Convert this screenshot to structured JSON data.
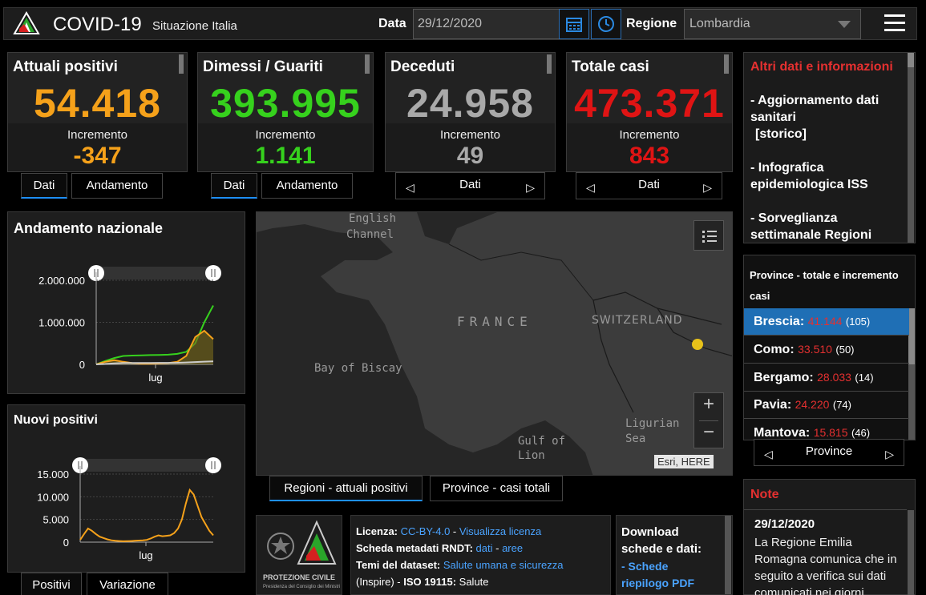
{
  "header": {
    "title": "COVID-19",
    "subtitle": "Situazione Italia",
    "date_label": "Data",
    "date_value": "29/12/2020",
    "region_label": "Regione",
    "region_value": "Lombardia"
  },
  "stats": [
    {
      "label": "Attuali positivi",
      "value": "54.418",
      "inc_label": "Incremento",
      "inc_value": "-347",
      "color": "#f5a11a"
    },
    {
      "label": "Dimessi / Guariti",
      "value": "393.995",
      "inc_label": "Incremento",
      "inc_value": "1.141",
      "color": "#36d11d"
    },
    {
      "label": "Deceduti",
      "value": "24.958",
      "inc_label": "Incremento",
      "inc_value": "49",
      "color": "#a9a9a9"
    },
    {
      "label": "Totale casi",
      "value": "473.371",
      "inc_label": "Incremento",
      "inc_value": "843",
      "color": "#e01414"
    }
  ],
  "stat_tabs": {
    "dati": "Dati",
    "andamento": "Andamento"
  },
  "sidebar": {
    "title": "Altri dati e informazioni",
    "links": [
      "- Aggiornamento dati sanitari",
      "[storico]",
      "- Infografica epidemiologica ISS",
      "- Sorveglianza settimanale Regioni"
    ]
  },
  "province": {
    "title": "Province - totale e incremento casi",
    "rows": [
      {
        "name": "Brescia:",
        "total": "41.144",
        "inc": "(105)"
      },
      {
        "name": "Como:",
        "total": "33.510",
        "inc": "(50)"
      },
      {
        "name": "Bergamo:",
        "total": "28.033",
        "inc": "(14)"
      },
      {
        "name": "Pavia:",
        "total": "24.220",
        "inc": "(74)"
      },
      {
        "name": "Mantova:",
        "total": "15.815",
        "inc": "(46)"
      }
    ],
    "nav_label": "Province"
  },
  "note": {
    "title": "Note",
    "date": "29/12/2020",
    "text": "La Regione Emilia Romagna comunica che in seguito a verifica sui dati comunicati nei giorni"
  },
  "chart_data": [
    {
      "type": "line",
      "title": "Andamento nazionale",
      "xlabel": "lug",
      "yticks": [
        "2.000.000",
        "1.000.000",
        "0"
      ],
      "ylim": [
        0,
        2000000
      ],
      "x": [
        0,
        1,
        2,
        3,
        4,
        5,
        6,
        7,
        8,
        9,
        10,
        11,
        12,
        13
      ],
      "series": [
        {
          "name": "",
          "color": "#36d11d",
          "values": [
            0,
            80000,
            150000,
            200000,
            210000,
            215000,
            220000,
            225000,
            230000,
            250000,
            300000,
            500000,
            1000000,
            1400000
          ]
        },
        {
          "name": "",
          "color": "#f5a11a",
          "values": [
            0,
            60000,
            100000,
            60000,
            30000,
            15000,
            15000,
            20000,
            30000,
            60000,
            200000,
            650000,
            800000,
            600000
          ]
        },
        {
          "name": "",
          "color": "#cccccc",
          "values": [
            0,
            10000,
            25000,
            33000,
            34000,
            35000,
            35000,
            35500,
            36000,
            38000,
            45000,
            55000,
            65000,
            72000
          ]
        }
      ]
    },
    {
      "type": "line",
      "title": "Nuovi positivi",
      "xlabel": "lug",
      "yticks": [
        "15.000",
        "10.000",
        "5.000",
        "0"
      ],
      "ylim": [
        0,
        15000
      ],
      "series": [
        {
          "name": "",
          "color": "#f5a11a",
          "values": [
            500,
            1800,
            3000,
            2500,
            1800,
            1200,
            900,
            600,
            400,
            300,
            250,
            200,
            220,
            250,
            300,
            350,
            400,
            500,
            800,
            1200,
            1500,
            1300,
            1400,
            1500,
            2000,
            3000,
            5000,
            8500,
            11500,
            10500,
            8000,
            5500,
            4000,
            2500,
            1500
          ]
        }
      ]
    }
  ],
  "chart_tabs": {
    "positivi": "Positivi",
    "variazione": "Variazione"
  },
  "map": {
    "labels": [
      "English",
      "Channel",
      "FRANCE",
      "SWITZERLAND",
      "Bay of Biscay",
      "Gulf of",
      "Lion",
      "Ligurian",
      "Sea"
    ],
    "attribution": "Esri, HERE",
    "tabs": [
      "Regioni - attuali positivi",
      "Province - casi totali"
    ]
  },
  "footer": {
    "license_label": "Licenza:",
    "license_value": "CC-BY-4.0",
    "license_link": "Visualizza licenza",
    "metadata_label": "Scheda metadati RNDT:",
    "metadata_dati": "dati",
    "metadata_aree": "aree",
    "themes_label": "Temi del dataset:",
    "themes_value": "Salute umana e sicurezza",
    "inspire": "(Inspire) -",
    "iso_label": "ISO 19115:",
    "iso_value": "Salute",
    "download_title": "Download schede e dati:",
    "download_link": "- Schede riepilogo PDF",
    "logo_text": "PROTEZIONE CIVILE",
    "logo_sub": "Presidenza del Consiglio dei Ministri"
  }
}
